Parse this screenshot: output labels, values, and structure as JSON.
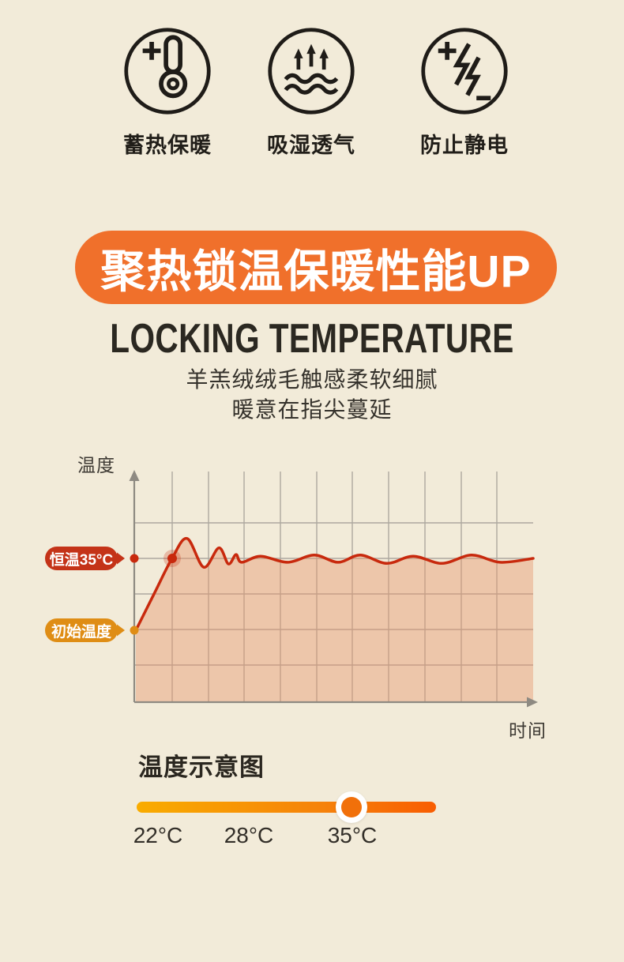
{
  "page": {
    "background": "#f2ebd9"
  },
  "features": {
    "items": [
      {
        "label": "蓄热保暖",
        "icon": "thermometer-plus-icon"
      },
      {
        "label": "吸湿透气",
        "icon": "moisture-breathable-icon"
      },
      {
        "label": "防止静电",
        "icon": "anti-static-icon"
      }
    ]
  },
  "banner": {
    "title": "聚热锁温保暖性能UP",
    "background": "#f0702b",
    "text_color": "#ffffff"
  },
  "heading": {
    "english_title": "LOCKING TEMPERATURE"
  },
  "subtitle": {
    "line1": "羊羔绒绒毛触感柔软细腻",
    "line2": "暖意在指尖蔓延"
  },
  "chart_data": {
    "type": "area",
    "title": "",
    "ylabel": "温度",
    "xlabel": "时间",
    "grid": true,
    "x_range": [
      0,
      100
    ],
    "annotations": [
      {
        "label": "恒温35°C",
        "value_c": 35,
        "color": "#c43318"
      },
      {
        "label": "初始温度",
        "value_c": 22,
        "color": "#df8d15"
      }
    ],
    "series": [
      {
        "name": "temperature-curve",
        "color": "#c8290d",
        "fill": "rgba(230,148,104,0.42)",
        "points_time_temp": [
          [
            0,
            22
          ],
          [
            4.6,
            28.6
          ],
          [
            9.1,
            35
          ],
          [
            12.9,
            38.6
          ],
          [
            17.1,
            33.4
          ],
          [
            20.9,
            36.9
          ],
          [
            23.3,
            34.0
          ],
          [
            25.2,
            35.7
          ],
          [
            26.6,
            34.3
          ],
          [
            31.4,
            35.4
          ],
          [
            38.2,
            34.3
          ],
          [
            44.9,
            35.6
          ],
          [
            50.9,
            34.3
          ],
          [
            56.5,
            35.6
          ],
          [
            63.2,
            34.1
          ],
          [
            69.8,
            35.4
          ],
          [
            77.1,
            34.1
          ],
          [
            84.5,
            35.6
          ],
          [
            91.7,
            34.3
          ],
          [
            100,
            35
          ]
        ]
      }
    ]
  },
  "diagram": {
    "title": "温度示意图",
    "scale_labels": [
      "22°C",
      "28°C",
      "35°C"
    ],
    "selected_value": "35°C",
    "gradient_stops": [
      "#f9ac00",
      "#f6820a",
      "#f85d02"
    ],
    "knob_color": "#f1700a"
  }
}
